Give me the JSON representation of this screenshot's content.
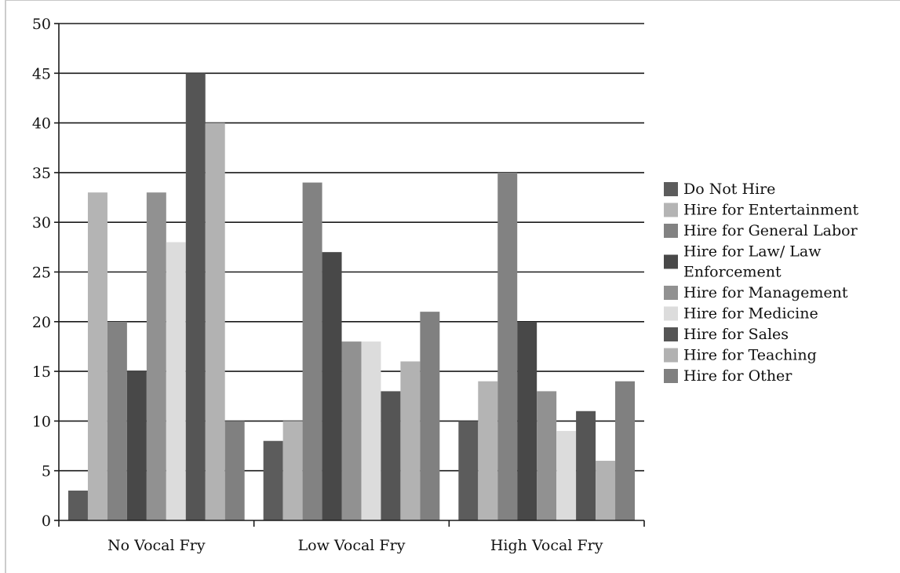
{
  "chart_data": {
    "type": "bar",
    "categories": [
      "No Vocal Fry",
      "Low Vocal Fry",
      "High Vocal Fry"
    ],
    "ylim": [
      0,
      50
    ],
    "yticks": [
      0,
      5,
      10,
      15,
      20,
      25,
      30,
      35,
      40,
      45,
      50
    ],
    "grid": true,
    "legend_position": "right",
    "series": [
      {
        "name": "Do Not Hire",
        "values": [
          3,
          8,
          10
        ],
        "color": "#5c5c5c"
      },
      {
        "name": "Hire for Entertainment",
        "values": [
          33,
          10,
          14
        ],
        "color": "#b4b4b4"
      },
      {
        "name": "Hire for General Labor",
        "values": [
          20,
          34,
          35
        ],
        "color": "#828282"
      },
      {
        "name": "Hire for Law/ Law Enforcement",
        "legend_lines": [
          "Hire for Law/ Law",
          "Enforcement"
        ],
        "values": [
          15,
          27,
          20
        ],
        "color": "#484848"
      },
      {
        "name": "Hire for Management",
        "values": [
          33,
          18,
          13
        ],
        "color": "#919191"
      },
      {
        "name": "Hire for Medicine",
        "values": [
          28,
          18,
          9
        ],
        "color": "#dcdcdc"
      },
      {
        "name": "Hire for Sales",
        "values": [
          45,
          13,
          11
        ],
        "color": "#555555"
      },
      {
        "name": "Hire for Teaching",
        "values": [
          40,
          16,
          6
        ],
        "color": "#b2b2b2"
      },
      {
        "name": "Hire for Other",
        "values": [
          10,
          21,
          14
        ],
        "color": "#808080"
      }
    ]
  }
}
